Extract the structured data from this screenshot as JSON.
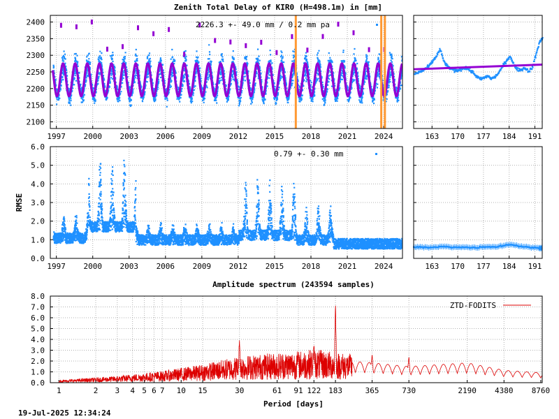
{
  "footer": {
    "timestamp": "19-Jul-2025 12:34:24"
  },
  "colors": {
    "obs": "#1e90ff",
    "model": "#9400d3",
    "event": "#ff9933",
    "spectrum": "#dd0000",
    "grid": "#b0b0b0"
  },
  "chart_data": [
    {
      "id": "ztd-long",
      "type": "scatter",
      "title": "Zenith Total Delay of KIR0 (H=498.1m) in [mm]",
      "annotation": "2226.3 +-  49.0 mm /  0.2 mm pa",
      "xlabel": "",
      "ylabel": "",
      "xlim": [
        1996.5,
        2025.55
      ],
      "ylim": [
        2080,
        2420
      ],
      "xticks": [
        "1997",
        "2000",
        "2003",
        "2006",
        "2009",
        "2012",
        "2015",
        "2018",
        "2021",
        "2024"
      ],
      "xtick_values": [
        1997,
        2000,
        2003,
        2006,
        2009,
        2012,
        2015,
        2018,
        2021,
        2024
      ],
      "yticks": [
        "2100",
        "2150",
        "2200",
        "2250",
        "2300",
        "2350",
        "2400"
      ],
      "ytick_values": [
        2100,
        2150,
        2200,
        2250,
        2300,
        2350,
        2400
      ],
      "mean_mm": 2226.3,
      "seasonal_amplitude_mm": 49.0,
      "trend_mm_pa": 0.2,
      "event_lines_years": [
        2016.75,
        2023.8,
        2024.1
      ],
      "grid": true
    },
    {
      "id": "ztd-recent",
      "type": "scatter",
      "title": "",
      "xlim": [
        158,
        193
      ],
      "ylim": [
        2080,
        2420
      ],
      "xticks": [
        "163",
        "170",
        "177",
        "184",
        "191"
      ],
      "xtick_values": [
        163,
        170,
        177,
        184,
        191
      ],
      "points": [
        [
          158,
          2245
        ],
        [
          159,
          2250
        ],
        [
          160,
          2255
        ],
        [
          161,
          2262
        ],
        [
          162,
          2270
        ],
        [
          163,
          2285
        ],
        [
          164,
          2300
        ],
        [
          165,
          2320
        ],
        [
          166,
          2285
        ],
        [
          167,
          2268
        ],
        [
          168,
          2262
        ],
        [
          169,
          2255
        ],
        [
          170,
          2258
        ],
        [
          171,
          2262
        ],
        [
          172,
          2265
        ],
        [
          173,
          2258
        ],
        [
          174,
          2250
        ],
        [
          175,
          2238
        ],
        [
          176,
          2230
        ],
        [
          177,
          2235
        ],
        [
          178,
          2240
        ],
        [
          179,
          2232
        ],
        [
          180,
          2238
        ],
        [
          181,
          2250
        ],
        [
          182,
          2270
        ],
        [
          183,
          2285
        ],
        [
          184,
          2300
        ],
        [
          185,
          2275
        ],
        [
          186,
          2260
        ],
        [
          187,
          2258
        ],
        [
          188,
          2265
        ],
        [
          189,
          2255
        ],
        [
          190,
          2262
        ],
        [
          191,
          2300
        ],
        [
          192,
          2340
        ],
        [
          193,
          2355
        ]
      ],
      "trend": [
        [
          158,
          2258
        ],
        [
          193,
          2272
        ]
      ],
      "grid": true
    },
    {
      "id": "rmse-long",
      "type": "scatter",
      "title": "",
      "annotation": "0.79 +-  0.30 mm",
      "ylabel": "RMSE",
      "xlim": [
        1996.5,
        2025.55
      ],
      "ylim": [
        0,
        6
      ],
      "xticks": [
        "1997",
        "2000",
        "2003",
        "2006",
        "2009",
        "2012",
        "2015",
        "2018",
        "2021",
        "2024"
      ],
      "xtick_values": [
        1997,
        2000,
        2003,
        2006,
        2009,
        2012,
        2015,
        2018,
        2021,
        2024
      ],
      "yticks": [
        "0.0",
        "1.0",
        "2.0",
        "3.0",
        "4.0",
        "5.0",
        "6.0"
      ],
      "ytick_values": [
        0,
        1,
        2,
        3,
        4,
        5,
        6
      ],
      "grid": true
    },
    {
      "id": "rmse-recent",
      "type": "scatter",
      "title": "",
      "xlim": [
        158,
        193
      ],
      "ylim": [
        0,
        6
      ],
      "xticks": [
        "163",
        "170",
        "177",
        "184",
        "191"
      ],
      "xtick_values": [
        163,
        170,
        177,
        184,
        191
      ],
      "points": [
        [
          158,
          0.6
        ],
        [
          160,
          0.62
        ],
        [
          162,
          0.58
        ],
        [
          164,
          0.6
        ],
        [
          166,
          0.65
        ],
        [
          168,
          0.6
        ],
        [
          170,
          0.62
        ],
        [
          172,
          0.6
        ],
        [
          174,
          0.58
        ],
        [
          176,
          0.6
        ],
        [
          178,
          0.64
        ],
        [
          180,
          0.62
        ],
        [
          182,
          0.68
        ],
        [
          184,
          0.75
        ],
        [
          186,
          0.7
        ],
        [
          188,
          0.62
        ],
        [
          190,
          0.6
        ],
        [
          192,
          0.55
        ],
        [
          193,
          0.58
        ]
      ],
      "grid": true
    },
    {
      "id": "spectrum",
      "type": "line",
      "title": "Amplitude spectrum (243594 samples)",
      "xlabel": "Period [days]",
      "legend": "ZTD-FODITS",
      "legend_position": "top-right",
      "xscale": "log",
      "xlim": [
        0.85,
        9000
      ],
      "ylim": [
        0,
        8
      ],
      "xticks": [
        "1",
        "2",
        "3",
        "4",
        "5",
        "6",
        "7",
        "10",
        "15",
        "30",
        "61",
        "91",
        "122",
        "183",
        "365",
        "730",
        "2190",
        "4380",
        "8760"
      ],
      "xtick_values": [
        1,
        2,
        3,
        4,
        5,
        6,
        7,
        10,
        15,
        30,
        61,
        91,
        122,
        183,
        365,
        730,
        2190,
        4380,
        8760
      ],
      "yticks": [
        "0.0",
        "1.0",
        "2.0",
        "3.0",
        "4.0",
        "5.0",
        "6.0",
        "7.0",
        "8.0"
      ],
      "ytick_values": [
        0,
        1,
        2,
        3,
        4,
        5,
        6,
        7,
        8
      ],
      "peaks": [
        [
          183,
          7.5
        ],
        [
          30,
          4.0
        ],
        [
          122,
          3.4
        ],
        [
          91,
          2.5
        ],
        [
          365,
          2.6
        ],
        [
          730,
          2.4
        ]
      ],
      "envelope": [
        [
          1,
          0.15
        ],
        [
          3,
          0.4
        ],
        [
          7,
          0.7
        ],
        [
          15,
          1.1
        ],
        [
          30,
          1.6
        ],
        [
          91,
          1.9
        ],
        [
          122,
          2.0
        ],
        [
          200,
          1.8
        ],
        [
          365,
          1.6
        ],
        [
          730,
          1.3
        ],
        [
          2190,
          1.6
        ],
        [
          4380,
          1.0
        ],
        [
          8760,
          0.8
        ]
      ],
      "grid": true
    }
  ]
}
